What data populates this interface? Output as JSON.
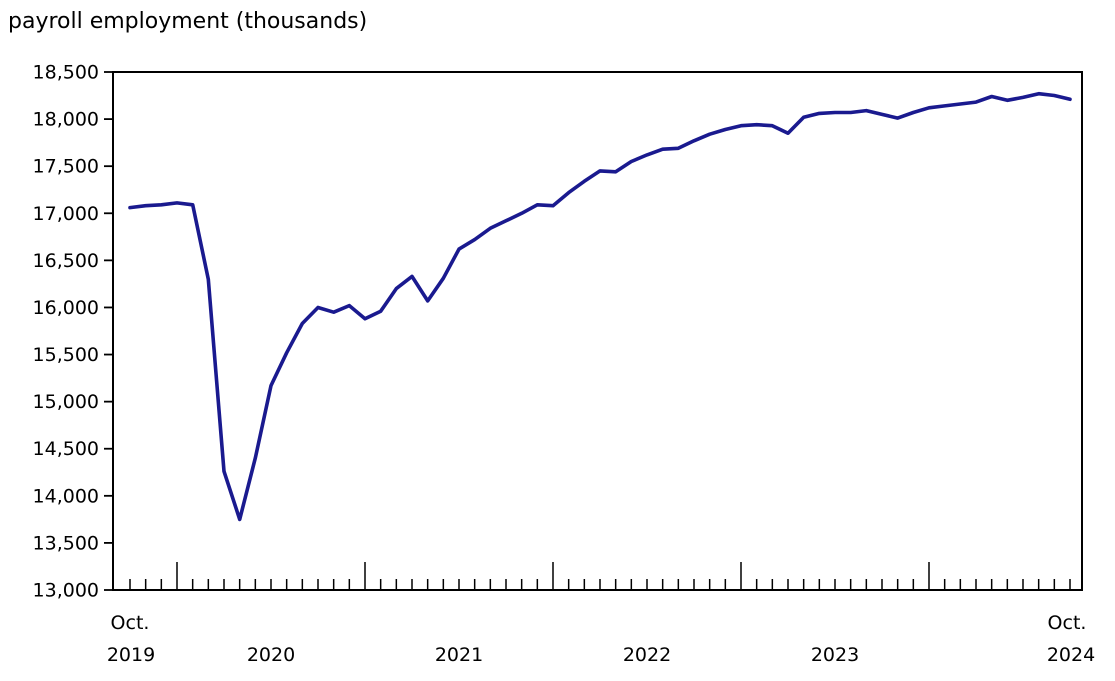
{
  "colors": {
    "line": "#1a1a8f",
    "axis": "#000000",
    "text": "#000000",
    "background": "#ffffff"
  },
  "xaxis": {
    "start": {
      "month": "Oct.",
      "year": "2019"
    },
    "years": [
      "2020",
      "2021",
      "2022",
      "2023"
    ],
    "end": {
      "month": "Oct.",
      "year": "2024"
    }
  },
  "chart_data": {
    "type": "line",
    "title": "payroll employment (thousands)",
    "xlabel": "",
    "ylabel": "payroll employment (thousands)",
    "ylim": [
      13000,
      18500
    ],
    "ytick_step": 500,
    "y_tick_labels": [
      "13,000",
      "13,500",
      "14,000",
      "14,500",
      "15,000",
      "15,500",
      "16,000",
      "16,500",
      "17,000",
      "17,500",
      "18,000",
      "18,500"
    ],
    "grid": false,
    "legend_position": "none",
    "x": [
      "2019-10",
      "2019-11",
      "2019-12",
      "2020-01",
      "2020-02",
      "2020-03",
      "2020-04",
      "2020-05",
      "2020-06",
      "2020-07",
      "2020-08",
      "2020-09",
      "2020-10",
      "2020-11",
      "2020-12",
      "2021-01",
      "2021-02",
      "2021-03",
      "2021-04",
      "2021-05",
      "2021-06",
      "2021-07",
      "2021-08",
      "2021-09",
      "2021-10",
      "2021-11",
      "2021-12",
      "2022-01",
      "2022-02",
      "2022-03",
      "2022-04",
      "2022-05",
      "2022-06",
      "2022-07",
      "2022-08",
      "2022-09",
      "2022-10",
      "2022-11",
      "2022-12",
      "2023-01",
      "2023-02",
      "2023-03",
      "2023-04",
      "2023-05",
      "2023-06",
      "2023-07",
      "2023-08",
      "2023-09",
      "2023-10",
      "2023-11",
      "2023-12",
      "2024-01",
      "2024-02",
      "2024-03",
      "2024-04",
      "2024-05",
      "2024-06",
      "2024-07",
      "2024-08",
      "2024-09",
      "2024-10"
    ],
    "values": [
      17060,
      17080,
      17090,
      17110,
      17090,
      16300,
      14260,
      13750,
      14400,
      15170,
      15520,
      15830,
      16000,
      15950,
      16020,
      15880,
      15960,
      16200,
      16330,
      16070,
      16310,
      16620,
      16720,
      16840,
      16920,
      17000,
      17090,
      17080,
      17220,
      17340,
      17450,
      17440,
      17550,
      17620,
      17680,
      17690,
      17770,
      17840,
      17890,
      17930,
      17940,
      17930,
      17850,
      18020,
      18060,
      18070,
      18070,
      18090,
      18050,
      18010,
      18070,
      18120,
      18140,
      18160,
      18180,
      18240,
      18200,
      18230,
      18270,
      18250,
      18210
    ]
  }
}
